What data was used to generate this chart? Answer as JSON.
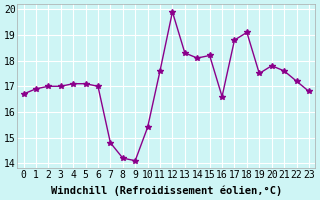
{
  "x": [
    0,
    1,
    2,
    3,
    4,
    5,
    6,
    7,
    8,
    9,
    10,
    11,
    12,
    13,
    14,
    15,
    16,
    17,
    18,
    19,
    20,
    21,
    22,
    23
  ],
  "y": [
    16.7,
    16.9,
    17.0,
    17.0,
    17.1,
    17.1,
    17.0,
    14.8,
    14.2,
    14.1,
    15.4,
    17.6,
    19.9,
    18.3,
    18.1,
    18.2,
    16.6,
    18.8,
    19.1,
    17.5,
    17.8,
    17.6,
    17.2,
    16.8
  ],
  "xlim": [
    -0.5,
    23.5
  ],
  "ylim": [
    13.8,
    20.2
  ],
  "xticks": [
    0,
    1,
    2,
    3,
    4,
    5,
    6,
    7,
    8,
    9,
    10,
    11,
    12,
    13,
    14,
    15,
    16,
    17,
    18,
    19,
    20,
    21,
    22,
    23
  ],
  "yticks": [
    14,
    15,
    16,
    17,
    18,
    19,
    20
  ],
  "xlabel": "Windchill (Refroidissement éolien,°C)",
  "line_color": "#8B008B",
  "marker": "*",
  "marker_size": 4,
  "bg_color": "#cef5f5",
  "grid_color": "#ffffff",
  "tick_label_fontsize": 7,
  "xlabel_fontsize": 7.5
}
